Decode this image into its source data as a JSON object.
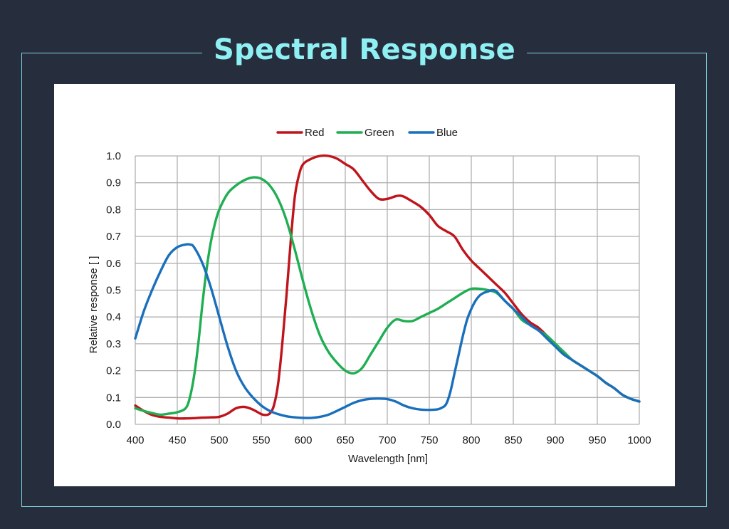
{
  "header": {
    "title": "Spectral Response"
  },
  "colors": {
    "background": "#262d3c",
    "title": "#8ff0f4",
    "frame": "#7fd3e0",
    "grid": "#b0b0b0"
  },
  "chart_data": {
    "type": "line",
    "title": "",
    "xlabel": "Wavelength [nm]",
    "ylabel": "Relative response [ ]",
    "xlim": [
      400,
      1000
    ],
    "ylim": [
      0,
      1.0
    ],
    "xticks": [
      400,
      450,
      500,
      550,
      600,
      650,
      700,
      750,
      800,
      850,
      900,
      950,
      1000
    ],
    "yticks": [
      0.0,
      0.1,
      0.2,
      0.3,
      0.4,
      0.5,
      0.6,
      0.7,
      0.8,
      0.9,
      1.0
    ],
    "ytick_labels": [
      "0.0",
      "0.1",
      "0.2",
      "0.3",
      "0.4",
      "0.5",
      "0.6",
      "0.7",
      "0.8",
      "0.9",
      "1.0"
    ],
    "grid": true,
    "legend_position": "top-center",
    "series": [
      {
        "name": "Red",
        "color": "#c0141c",
        "x": [
          400,
          410,
          420,
          430,
          440,
          450,
          460,
          470,
          480,
          490,
          500,
          510,
          520,
          530,
          540,
          550,
          555,
          560,
          565,
          570,
          575,
          580,
          585,
          590,
          595,
          600,
          610,
          620,
          630,
          640,
          650,
          660,
          670,
          680,
          690,
          700,
          710,
          715,
          720,
          730,
          740,
          750,
          760,
          770,
          780,
          790,
          800,
          810,
          820,
          830,
          840,
          850,
          860,
          870,
          880,
          890,
          900,
          910,
          920,
          930,
          940,
          950,
          960,
          970,
          980,
          990,
          1000
        ],
        "y": [
          0.07,
          0.05,
          0.035,
          0.028,
          0.025,
          0.022,
          0.022,
          0.023,
          0.025,
          0.026,
          0.028,
          0.04,
          0.06,
          0.065,
          0.055,
          0.038,
          0.035,
          0.04,
          0.07,
          0.15,
          0.3,
          0.48,
          0.68,
          0.85,
          0.93,
          0.97,
          0.99,
          1.0,
          1.0,
          0.99,
          0.97,
          0.95,
          0.91,
          0.87,
          0.84,
          0.84,
          0.85,
          0.852,
          0.848,
          0.83,
          0.81,
          0.78,
          0.74,
          0.72,
          0.7,
          0.65,
          0.61,
          0.58,
          0.55,
          0.52,
          0.49,
          0.45,
          0.41,
          0.38,
          0.36,
          0.33,
          0.3,
          0.27,
          0.24,
          0.22,
          0.2,
          0.18,
          0.155,
          0.135,
          0.11,
          0.095,
          0.085
        ]
      },
      {
        "name": "Green",
        "color": "#1fae52",
        "x": [
          400,
          410,
          420,
          430,
          440,
          450,
          460,
          465,
          470,
          475,
          480,
          485,
          490,
          495,
          500,
          510,
          520,
          530,
          540,
          550,
          560,
          570,
          580,
          590,
          600,
          610,
          620,
          630,
          640,
          650,
          660,
          670,
          680,
          690,
          700,
          710,
          720,
          730,
          740,
          750,
          760,
          770,
          780,
          790,
          800,
          810,
          820,
          830,
          840,
          850,
          860,
          870,
          880,
          890,
          900,
          910,
          920,
          930,
          940,
          950,
          960,
          970,
          980,
          990,
          1000
        ],
        "y": [
          0.06,
          0.05,
          0.042,
          0.036,
          0.04,
          0.045,
          0.06,
          0.1,
          0.18,
          0.3,
          0.45,
          0.58,
          0.68,
          0.75,
          0.8,
          0.86,
          0.89,
          0.91,
          0.92,
          0.915,
          0.89,
          0.84,
          0.76,
          0.65,
          0.53,
          0.42,
          0.33,
          0.27,
          0.23,
          0.2,
          0.19,
          0.21,
          0.26,
          0.31,
          0.36,
          0.39,
          0.385,
          0.385,
          0.4,
          0.415,
          0.43,
          0.45,
          0.47,
          0.49,
          0.505,
          0.505,
          0.5,
          0.49,
          0.46,
          0.43,
          0.39,
          0.37,
          0.35,
          0.33,
          0.3,
          0.27,
          0.24,
          0.22,
          0.2,
          0.18,
          0.155,
          0.135,
          0.11,
          0.095,
          0.085
        ]
      },
      {
        "name": "Blue",
        "color": "#1a6fbd",
        "x": [
          400,
          410,
          420,
          430,
          440,
          450,
          460,
          465,
          470,
          480,
          490,
          500,
          510,
          520,
          530,
          540,
          550,
          560,
          570,
          580,
          590,
          600,
          610,
          620,
          630,
          640,
          650,
          660,
          670,
          680,
          690,
          700,
          710,
          720,
          730,
          740,
          750,
          760,
          765,
          770,
          775,
          780,
          785,
          790,
          795,
          800,
          805,
          810,
          815,
          820,
          825,
          830,
          840,
          850,
          860,
          870,
          880,
          890,
          900,
          910,
          920,
          930,
          940,
          950,
          960,
          970,
          980,
          990,
          1000
        ],
        "y": [
          0.32,
          0.42,
          0.5,
          0.57,
          0.63,
          0.66,
          0.67,
          0.67,
          0.66,
          0.6,
          0.51,
          0.4,
          0.29,
          0.2,
          0.14,
          0.1,
          0.07,
          0.05,
          0.038,
          0.03,
          0.026,
          0.024,
          0.024,
          0.028,
          0.036,
          0.05,
          0.065,
          0.08,
          0.09,
          0.095,
          0.096,
          0.094,
          0.085,
          0.07,
          0.06,
          0.055,
          0.054,
          0.056,
          0.062,
          0.075,
          0.12,
          0.19,
          0.26,
          0.33,
          0.39,
          0.43,
          0.46,
          0.48,
          0.49,
          0.495,
          0.5,
          0.495,
          0.46,
          0.43,
          0.4,
          0.37,
          0.35,
          0.32,
          0.29,
          0.26,
          0.24,
          0.22,
          0.2,
          0.18,
          0.155,
          0.135,
          0.11,
          0.095,
          0.085
        ]
      }
    ]
  }
}
